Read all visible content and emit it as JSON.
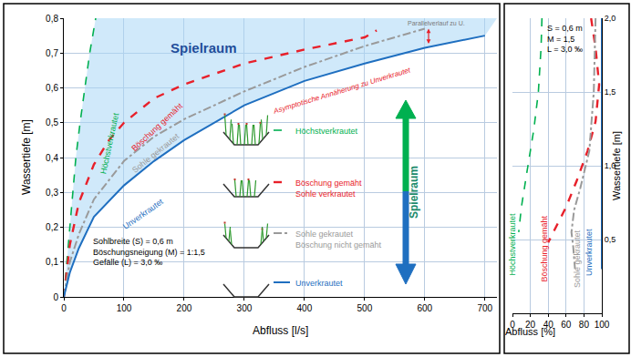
{
  "chart_data": [
    {
      "type": "line",
      "x_label": "Abfluss [l/s]",
      "y_label": "Wassertiefe [m]",
      "xlim": [
        0,
        720
      ],
      "xticks": [
        0,
        100,
        200,
        300,
        400,
        500,
        600,
        700
      ],
      "ylim": [
        0,
        0.8
      ],
      "yticks": [
        0,
        {
          "value": 0.1,
          "label": "0,1"
        },
        {
          "value": 0.2,
          "label": "0,2"
        },
        {
          "value": 0.3,
          "label": "0,3"
        },
        {
          "value": 0.4,
          "label": "0,4"
        },
        {
          "value": 0.5,
          "label": "0,5"
        },
        {
          "value": 0.6,
          "label": "0,6"
        },
        {
          "value": 0.7,
          "label": "0,7"
        },
        {
          "value": 0.8,
          "label": "0,8"
        }
      ],
      "grid": true,
      "series": [
        {
          "name": "Höchstverkrautet",
          "color": "#00b050",
          "line_style": "dash",
          "x": [
            0,
            5,
            10,
            15,
            20,
            27,
            35,
            43,
            53
          ],
          "values": [
            0,
            0.1,
            0.2,
            0.3,
            0.4,
            0.5,
            0.6,
            0.7,
            0.8
          ]
        },
        {
          "name": "Böschung gemäht",
          "color": "#e8202a",
          "line_style": "dash",
          "x": [
            0,
            10,
            25,
            50,
            75,
            100,
            150,
            200,
            300,
            400,
            500,
            520
          ],
          "values": [
            0,
            0.15,
            0.27,
            0.38,
            0.45,
            0.5,
            0.57,
            0.61,
            0.67,
            0.71,
            0.745,
            0.765
          ]
        },
        {
          "name": "Sohle gekrautet",
          "color": "#9a9a9a",
          "line_style": "dashdot",
          "x": [
            0,
            10,
            25,
            50,
            100,
            150,
            200,
            300,
            400,
            500,
            600
          ],
          "values": [
            0,
            0.1,
            0.18,
            0.28,
            0.39,
            0.46,
            0.51,
            0.59,
            0.66,
            0.72,
            0.77
          ]
        },
        {
          "name": "Unverkrautet",
          "color": "#1f6fc0",
          "line_style": "solid",
          "x": [
            0,
            10,
            25,
            50,
            100,
            150,
            200,
            300,
            400,
            500,
            600,
            700
          ],
          "values": [
            0,
            0.07,
            0.14,
            0.23,
            0.32,
            0.39,
            0.45,
            0.55,
            0.62,
            0.67,
            0.715,
            0.75
          ]
        }
      ],
      "annotations": [
        "Spielraum",
        "Asymptotische Annäherung zu Unverkrautet",
        "Parallelverlauf zu U."
      ],
      "parameters": [
        "Sohlbreite (S) = 0,6 m",
        "Böschungsneigung (M) = 1:1,5",
        "Gefälle (L) = 3,0 ‰"
      ],
      "legend_labels": [
        [
          "Höchstverkrautet"
        ],
        [
          "Böschung gemäht",
          "Sohle verkrautet"
        ],
        [
          "Sohle gekrautet",
          "Böschung nicht gemäht"
        ],
        [
          "Unverkrautet"
        ]
      ],
      "arrow_label": "Spielraum"
    },
    {
      "type": "line",
      "x_label": "Abfluss [%]",
      "y_label": "Wassertiefe [m]",
      "xlim": [
        0,
        100
      ],
      "xticks": [
        0,
        20,
        40,
        60,
        80,
        100
      ],
      "ylim": [
        0,
        2.0
      ],
      "yticks": [
        {
          "value": 0.5,
          "label": "0,5"
        },
        {
          "value": 1.0,
          "label": "1,0"
        },
        {
          "value": 1.5,
          "label": "1,5"
        },
        {
          "value": 2.0,
          "label": "2,0"
        }
      ],
      "grid": true,
      "series": [
        {
          "name": "Höchstverkrautet",
          "color": "#00b050",
          "line_style": "dash",
          "x": [
            33,
            32,
            29,
            24,
            16,
            10,
            7
          ],
          "values": [
            2.0,
            1.8,
            1.5,
            1.25,
            0.95,
            0.72,
            0.55
          ]
        },
        {
          "name": "Böschung gemäht",
          "color": "#e8202a",
          "line_style": "dash",
          "x": [
            88,
            93,
            97,
            93,
            84,
            72,
            60,
            50,
            40
          ],
          "values": [
            2.0,
            1.8,
            1.55,
            1.3,
            1.1,
            0.9,
            0.72,
            0.6,
            0.48
          ]
        },
        {
          "name": "Sohle gekrautet",
          "color": "#9a9a9a",
          "line_style": "dashdot",
          "x": [
            93,
            91,
            86,
            76,
            69,
            66,
            68,
            70
          ],
          "values": [
            2.0,
            1.5,
            1.1,
            0.85,
            0.7,
            0.55,
            0.45,
            0.3
          ]
        },
        {
          "name": "Unverkrautet",
          "color": "#1f6fc0",
          "line_style": "solid",
          "x": [
            100,
            100
          ],
          "values": [
            0.3,
            2.0
          ]
        }
      ],
      "parameters": [
        "S = 0,6 m",
        "M = 1,5",
        "L = 3,0 ‰"
      ]
    }
  ]
}
